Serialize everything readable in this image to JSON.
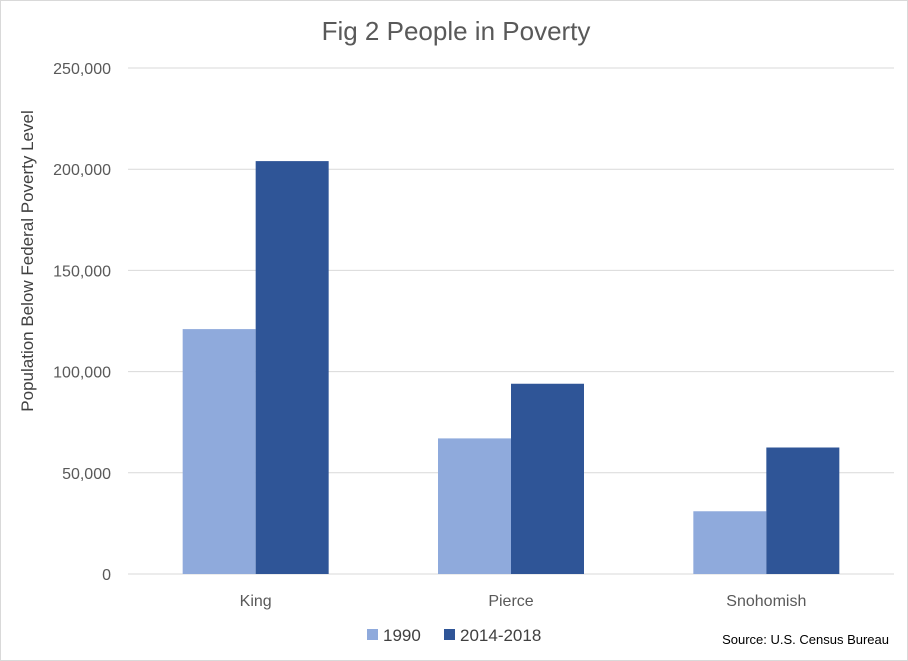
{
  "chart_data": {
    "type": "bar",
    "title": "Fig 2 People in Poverty",
    "xlabel": "",
    "ylabel": "Population Below Federal Poverty Level",
    "categories": [
      "King",
      "Pierce",
      "Snohomish"
    ],
    "series": [
      {
        "name": "1990",
        "color": "#8faadc",
        "values": [
          121000,
          67000,
          31000
        ]
      },
      {
        "name": "2014-2018",
        "color": "#2f5597",
        "values": [
          204000,
          94000,
          62500
        ]
      }
    ],
    "ylim": [
      0,
      250000
    ],
    "yticks": [
      0,
      50000,
      100000,
      150000,
      200000,
      250000
    ],
    "ytick_labels": [
      "0",
      "50,000",
      "100,000",
      "150,000",
      "200,000",
      "250,000"
    ],
    "grid": true,
    "legend_position": "bottom",
    "source_note": "Source: U.S. Census Bureau",
    "gridline_color": "#d9d9d9"
  }
}
